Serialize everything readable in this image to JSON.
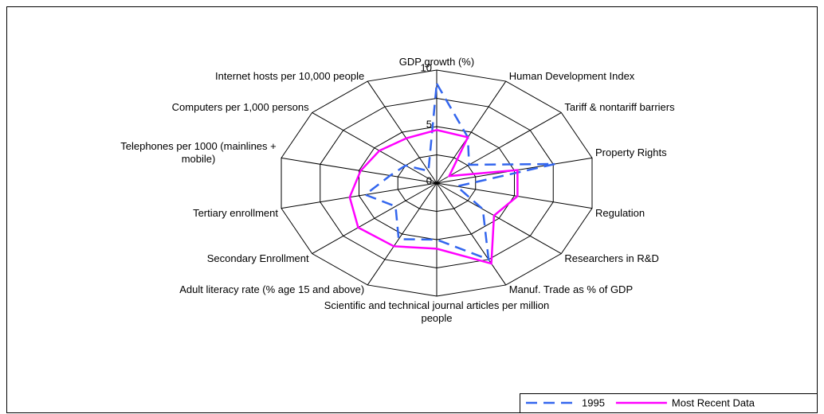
{
  "chart_data": {
    "type": "radar",
    "categories": [
      "GDP growth  (%)",
      "Human Development Index",
      "Tariff & nontariff barriers",
      "Property Rights",
      "Regulation",
      "Researchers in R&D",
      "Manuf. Trade as % of GDP",
      "Scientific and technical journal articles per million people",
      "Adult literacy rate (% age 15 and above)",
      "Secondary Enrollment",
      "Tertiary  enrollment",
      "Telephones per 1000 (mainlines + mobile)",
      "Computers per 1,000 persons",
      "Internet hosts per 10,000 people"
    ],
    "series": [
      {
        "name": "1995",
        "color": "#3366ee",
        "dash": true,
        "values": [
          8.8,
          4.5,
          2.6,
          7.6,
          1.3,
          3.7,
          7.5,
          5,
          5.5,
          3.3,
          4.6,
          3,
          2.5,
          1.2
        ]
      },
      {
        "name": "Most Recent Data",
        "color": "#ff00ff",
        "dash": false,
        "values": [
          4.7,
          4.5,
          1.0,
          5.2,
          5.2,
          4.6,
          7.9,
          5.8,
          6.2,
          6.3,
          5.6,
          4.9,
          4.6,
          4.4
        ]
      }
    ],
    "ylim": [
      0,
      10
    ],
    "yticks": [
      0,
      5,
      10
    ],
    "minor_gridlines": [
      2.5,
      7.5
    ]
  }
}
